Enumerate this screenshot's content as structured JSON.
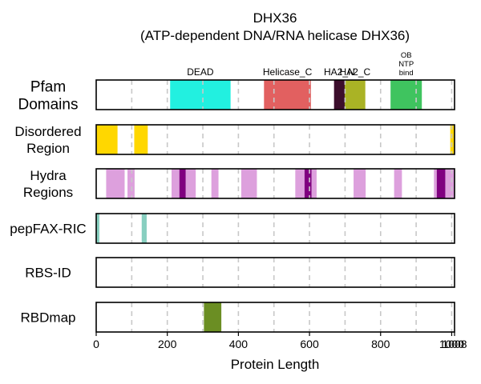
{
  "chart_data": {
    "type": "protein-domain-tracks",
    "title_lines": [
      "DHX36",
      "(ATP-dependent DNA/RNA helicase DHX36)"
    ],
    "xlabel": "Protein Length",
    "xlim": [
      0,
      1008
    ],
    "xticks": [
      0,
      200,
      400,
      600,
      800,
      1000
    ],
    "xtick_labels": [
      "0",
      "200",
      "400",
      "600",
      "800",
      "1000"
    ],
    "end_tick": 1008,
    "end_tick_label": "1008",
    "gridlines": [
      100,
      200,
      300,
      400,
      500,
      600,
      700,
      800,
      900,
      1000
    ],
    "tracks": [
      {
        "id": "pfam",
        "label_lines": [
          "Pfam",
          "Domains"
        ],
        "segments": [
          {
            "name": "DEAD",
            "start": 208,
            "end": 378,
            "color": "#22F0E0"
          },
          {
            "name": "Helicase_C",
            "start": 472,
            "end": 604,
            "color": "#E26060"
          },
          {
            "name": "HA2_N",
            "start": 669,
            "end": 699,
            "color": "#3C0E2C"
          },
          {
            "name": "HA2_C",
            "start": 699,
            "end": 757,
            "color": "#AAB325"
          },
          {
            "name": "OB NTP bind",
            "name_lines": [
              "OB",
              "NTP",
              "bind"
            ],
            "start": 828,
            "end": 916,
            "color": "#3FC45F"
          }
        ]
      },
      {
        "id": "disordered",
        "label_lines": [
          "Disordered",
          "Region"
        ],
        "segments": [
          {
            "start": 0,
            "end": 60,
            "color": "#FFD700"
          },
          {
            "start": 107,
            "end": 145,
            "color": "#FFD700"
          },
          {
            "start": 996,
            "end": 1008,
            "color": "#FFD700"
          }
        ]
      },
      {
        "id": "hydra",
        "label_lines": [
          "Hydra",
          "Regions"
        ],
        "segments": [
          {
            "start": 28,
            "end": 80,
            "color": "#DDA0DD"
          },
          {
            "start": 88,
            "end": 108,
            "color": "#DDA0DD"
          },
          {
            "start": 212,
            "end": 234,
            "color": "#DDA0DD"
          },
          {
            "start": 234,
            "end": 252,
            "color": "#800080"
          },
          {
            "start": 252,
            "end": 280,
            "color": "#DDA0DD"
          },
          {
            "start": 324,
            "end": 344,
            "color": "#DDA0DD"
          },
          {
            "start": 408,
            "end": 452,
            "color": "#DDA0DD"
          },
          {
            "start": 560,
            "end": 586,
            "color": "#DDA0DD"
          },
          {
            "start": 586,
            "end": 606,
            "color": "#800080"
          },
          {
            "start": 606,
            "end": 620,
            "color": "#DDA0DD"
          },
          {
            "start": 724,
            "end": 758,
            "color": "#DDA0DD"
          },
          {
            "start": 838,
            "end": 860,
            "color": "#DDA0DD"
          },
          {
            "start": 950,
            "end": 958,
            "color": "#DDA0DD"
          },
          {
            "start": 958,
            "end": 982,
            "color": "#800080"
          },
          {
            "start": 982,
            "end": 1008,
            "color": "#DDA0DD"
          }
        ]
      },
      {
        "id": "pepfax",
        "label_lines": [
          "pepFAX-RIC"
        ],
        "segments": [
          {
            "start": 0,
            "end": 9,
            "color": "#88CFC0"
          },
          {
            "start": 128,
            "end": 142,
            "color": "#88CFC0"
          }
        ]
      },
      {
        "id": "rbsid",
        "label_lines": [
          "RBS-ID"
        ],
        "segments": []
      },
      {
        "id": "rbdmap",
        "label_lines": [
          "RBDmap"
        ],
        "segments": [
          {
            "start": 303,
            "end": 352,
            "color": "#6B8E23"
          }
        ]
      }
    ]
  }
}
